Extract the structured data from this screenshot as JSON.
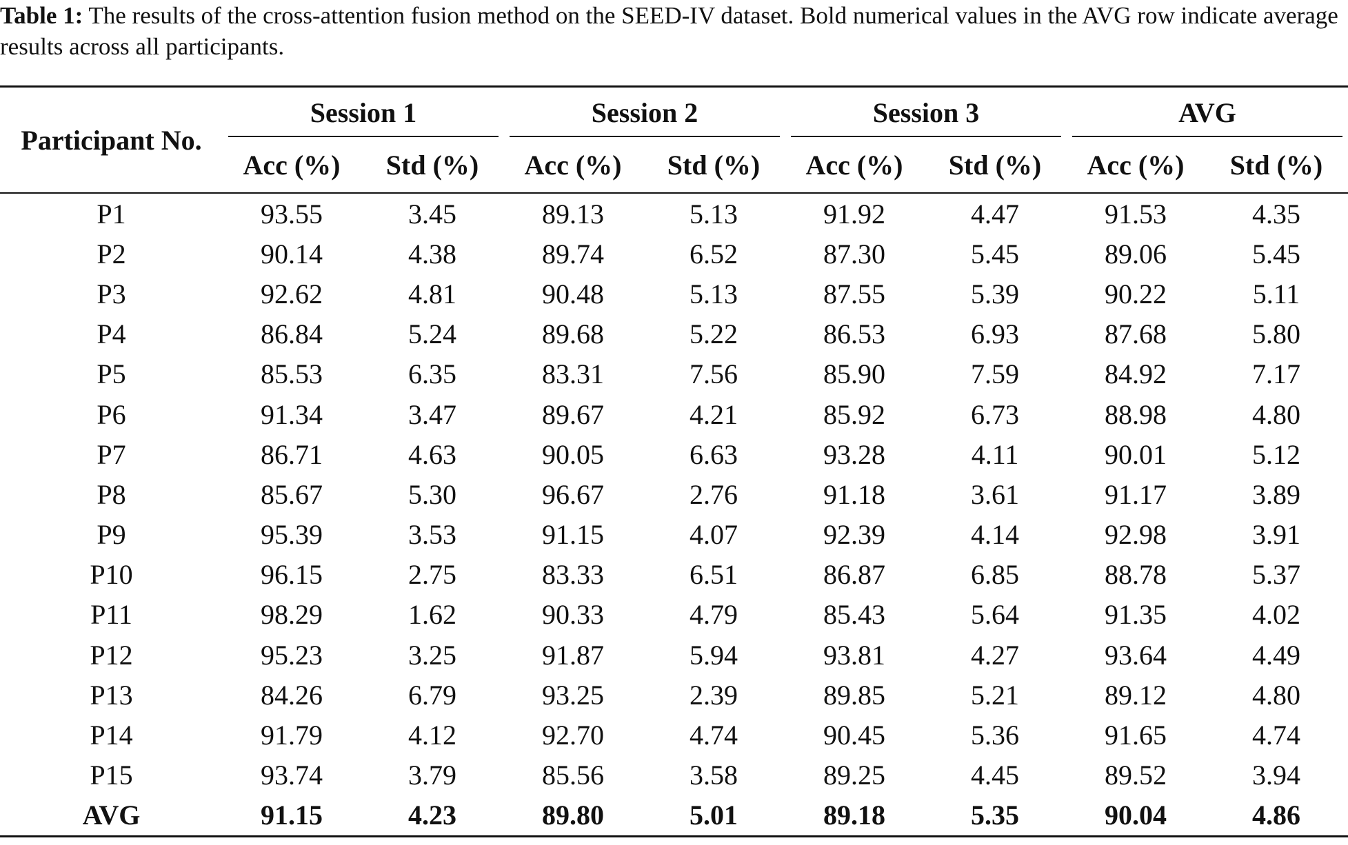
{
  "caption": {
    "label": "Table 1:",
    "text": "The results of the cross-attention fusion method on the SEED-IV dataset. Bold numerical values in the AVG row indicate average results across all participants."
  },
  "table": {
    "participant_header": "Participant No.",
    "groups": [
      "Session 1",
      "Session 2",
      "Session 3",
      "AVG"
    ],
    "sub_headers": [
      "Acc (%)",
      "Std (%)",
      "Acc (%)",
      "Std (%)",
      "Acc (%)",
      "Std (%)",
      "Acc (%)",
      "Std (%)"
    ],
    "rows": [
      {
        "participant": "P1",
        "values": [
          "93.55",
          "3.45",
          "89.13",
          "5.13",
          "91.92",
          "4.47",
          "91.53",
          "4.35"
        ]
      },
      {
        "participant": "P2",
        "values": [
          "90.14",
          "4.38",
          "89.74",
          "6.52",
          "87.30",
          "5.45",
          "89.06",
          "5.45"
        ]
      },
      {
        "participant": "P3",
        "values": [
          "92.62",
          "4.81",
          "90.48",
          "5.13",
          "87.55",
          "5.39",
          "90.22",
          "5.11"
        ]
      },
      {
        "participant": "P4",
        "values": [
          "86.84",
          "5.24",
          "89.68",
          "5.22",
          "86.53",
          "6.93",
          "87.68",
          "5.80"
        ]
      },
      {
        "participant": "P5",
        "values": [
          "85.53",
          "6.35",
          "83.31",
          "7.56",
          "85.90",
          "7.59",
          "84.92",
          "7.17"
        ]
      },
      {
        "participant": "P6",
        "values": [
          "91.34",
          "3.47",
          "89.67",
          "4.21",
          "85.92",
          "6.73",
          "88.98",
          "4.80"
        ]
      },
      {
        "participant": "P7",
        "values": [
          "86.71",
          "4.63",
          "90.05",
          "6.63",
          "93.28",
          "4.11",
          "90.01",
          "5.12"
        ]
      },
      {
        "participant": "P8",
        "values": [
          "85.67",
          "5.30",
          "96.67",
          "2.76",
          "91.18",
          "3.61",
          "91.17",
          "3.89"
        ]
      },
      {
        "participant": "P9",
        "values": [
          "95.39",
          "3.53",
          "91.15",
          "4.07",
          "92.39",
          "4.14",
          "92.98",
          "3.91"
        ]
      },
      {
        "participant": "P10",
        "values": [
          "96.15",
          "2.75",
          "83.33",
          "6.51",
          "86.87",
          "6.85",
          "88.78",
          "5.37"
        ]
      },
      {
        "participant": "P11",
        "values": [
          "98.29",
          "1.62",
          "90.33",
          "4.79",
          "85.43",
          "5.64",
          "91.35",
          "4.02"
        ]
      },
      {
        "participant": "P12",
        "values": [
          "95.23",
          "3.25",
          "91.87",
          "5.94",
          "93.81",
          "4.27",
          "93.64",
          "4.49"
        ]
      },
      {
        "participant": "P13",
        "values": [
          "84.26",
          "6.79",
          "93.25",
          "2.39",
          "89.85",
          "5.21",
          "89.12",
          "4.80"
        ]
      },
      {
        "participant": "P14",
        "values": [
          "91.79",
          "4.12",
          "92.70",
          "4.74",
          "90.45",
          "5.36",
          "91.65",
          "4.74"
        ]
      },
      {
        "participant": "P15",
        "values": [
          "93.74",
          "3.79",
          "85.56",
          "3.58",
          "89.25",
          "4.45",
          "89.52",
          "3.94"
        ]
      }
    ],
    "avg_row": {
      "participant": "AVG",
      "values": [
        "91.15",
        "4.23",
        "89.80",
        "5.01",
        "89.18",
        "5.35",
        "90.04",
        "4.86"
      ]
    }
  }
}
